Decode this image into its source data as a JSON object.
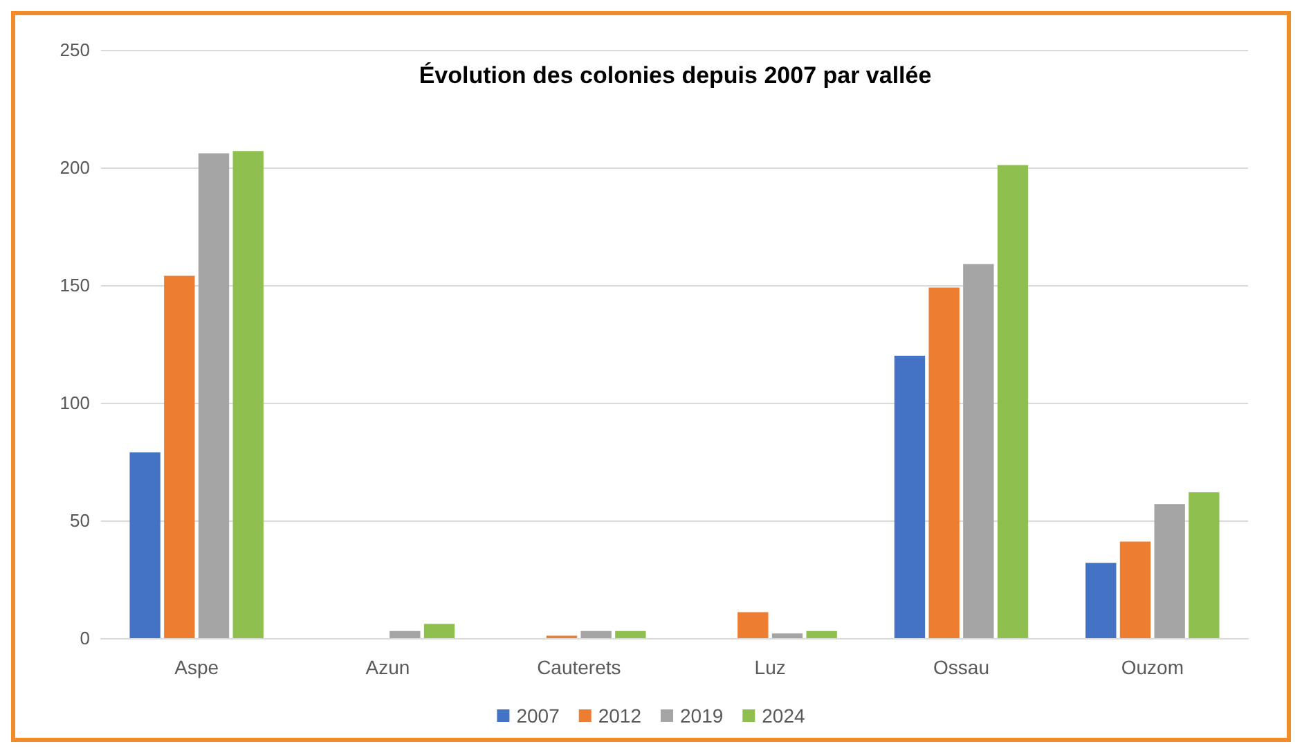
{
  "chart_data": {
    "type": "bar",
    "title": "Évolution des colonies depuis 2007 par vallée",
    "categories": [
      "Aspe",
      "Azun",
      "Cauterets",
      "Luz",
      "Ossau",
      "Ouzom"
    ],
    "series": [
      {
        "name": "2007",
        "color": "#4472c4",
        "values": [
          79,
          0,
          0,
          0,
          120,
          32
        ]
      },
      {
        "name": "2012",
        "color": "#ed7d31",
        "values": [
          154,
          0,
          1,
          11,
          149,
          41
        ]
      },
      {
        "name": "2019",
        "color": "#a5a5a5",
        "values": [
          206,
          3,
          3,
          2,
          159,
          57
        ]
      },
      {
        "name": "2024",
        "color": "#8fc04f",
        "values": [
          207,
          6,
          3,
          3,
          201,
          62
        ]
      }
    ],
    "ylim": [
      0,
      250
    ],
    "yticks": [
      0,
      50,
      100,
      150,
      200,
      250
    ],
    "grid": "y",
    "legend": "bottom"
  }
}
